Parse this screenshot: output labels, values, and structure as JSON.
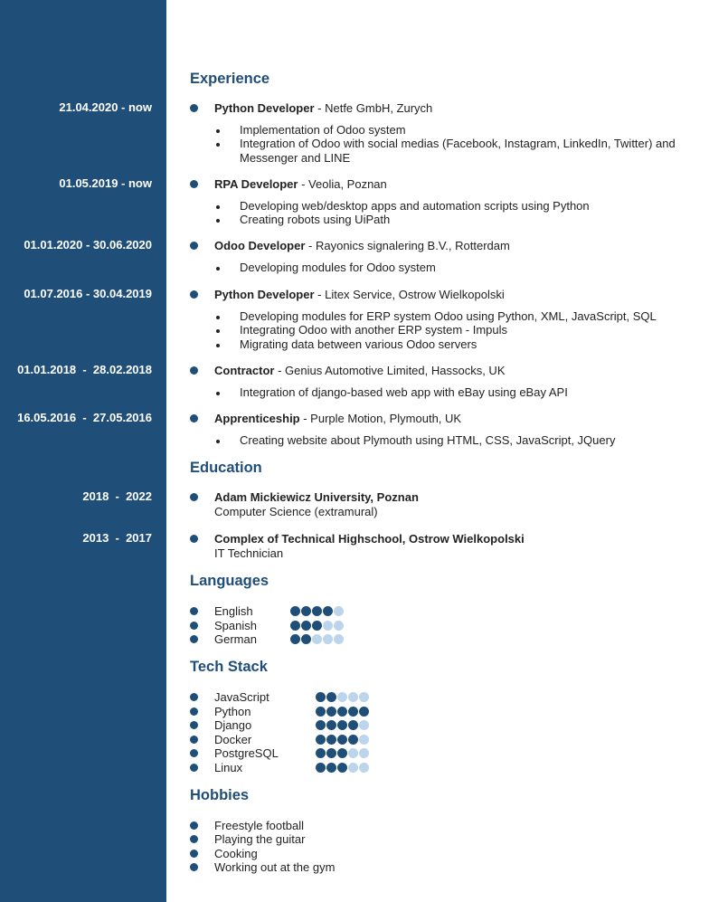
{
  "sections": {
    "experience": "Experience",
    "education": "Education",
    "languages": "Languages",
    "tech": "Tech Stack",
    "hobbies": "Hobbies"
  },
  "experience": [
    {
      "date": "21.04.2020 - now",
      "title": "Python Developer",
      "place": " - Netfe GmbH, Zurych",
      "items": [
        "Implementation of Odoo system",
        "Integration of Odoo with social medias (Facebook, Instagram, LinkedIn, Twitter) and Messenger and LINE"
      ]
    },
    {
      "date": "01.05.2019 - now",
      "title": "RPA Developer",
      "place": " - Veolia, Poznan",
      "items": [
        "Developing web/desktop apps and automation scripts using Python",
        "Creating robots using UiPath"
      ]
    },
    {
      "date": "01.01.2020 - 30.06.2020",
      "title": "Odoo Developer",
      "place": " - Rayonics signalering B.V., Rotterdam",
      "items": [
        "Developing modules for Odoo system"
      ]
    },
    {
      "date": "01.07.2016 - 30.04.2019",
      "title": "Python Developer",
      "place": " - Litex Service, Ostrow Wielkopolski",
      "items": [
        "Developing modules for ERP system Odoo using Python, XML, JavaScript, SQL",
        "Integrating Odoo with another ERP system - Impuls",
        "Migrating data between various Odoo servers"
      ]
    },
    {
      "date": "01.01.2018  -  28.02.2018",
      "title": "Contractor",
      "place": " - Genius Automotive Limited, Hassocks, UK",
      "items": [
        "Integration of django-based web app with eBay using eBay API"
      ]
    },
    {
      "date": "16.05.2016  -  27.05.2016",
      "title": "Apprenticeship",
      "place": " - Purple Motion, Plymouth, UK",
      "items": [
        "Creating website about Plymouth using HTML, CSS, JavaScript, JQuery"
      ]
    }
  ],
  "education": [
    {
      "date": "2018  -  2022",
      "school": "Adam Mickiewicz University, Poznan",
      "detail": "Computer Science (extramural)"
    },
    {
      "date": "2013  -  2017",
      "school": "Complex of Technical Highschool, Ostrow Wielkopolski",
      "detail": "IT Technician"
    }
  ],
  "languages": [
    {
      "name": "English",
      "level": 4
    },
    {
      "name": "Spanish",
      "level": 3
    },
    {
      "name": "German",
      "level": 2
    }
  ],
  "tech": [
    {
      "name": "JavaScript",
      "level": 2
    },
    {
      "name": "Python",
      "level": 5
    },
    {
      "name": "Django",
      "level": 4
    },
    {
      "name": "Docker",
      "level": 4
    },
    {
      "name": "PostgreSQL",
      "level": 3
    },
    {
      "name": "Linux",
      "level": 3
    }
  ],
  "rating_max": 5,
  "hobbies": [
    "Freestyle football",
    "Playing the guitar",
    "Cooking",
    "Working out at the gym"
  ],
  "colors": {
    "sidebar": "#1f4e79",
    "dot_on": "#1f4e79",
    "dot_off": "#bcd5ec"
  }
}
